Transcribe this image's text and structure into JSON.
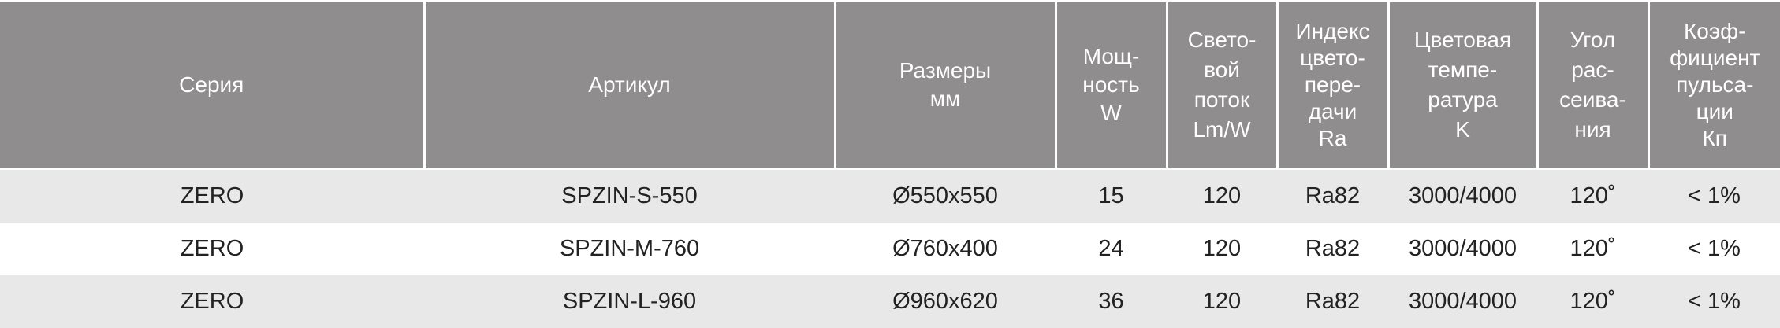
{
  "colors": {
    "header_bg": "#8f8d8e",
    "row_alt_bg": "#e8e8e8"
  },
  "headers": [
    [
      "Серия"
    ],
    [
      "Артикул"
    ],
    [
      "Размеры",
      "мм"
    ],
    [
      "Мощ-",
      "ность",
      "W"
    ],
    [
      "Свето-",
      "вой",
      "поток",
      "Lm/W"
    ],
    [
      "Индекс",
      "цвето-",
      "пере-",
      "дачи",
      "Ra"
    ],
    [
      "Цветовая",
      "темпе-",
      "ратура",
      "K"
    ],
    [
      "Угол",
      "рас-",
      "сеива-",
      "ния"
    ],
    [
      "Коэф-",
      "фициент",
      "пульса-",
      "ции",
      "Кп"
    ]
  ],
  "rows": [
    [
      "ZERO",
      "SPZIN-S-550",
      "Ø550x550",
      "15",
      "120",
      "Ra82",
      "3000/4000",
      "120˚",
      "< 1%"
    ],
    [
      "ZERO",
      "SPZIN-M-760",
      "Ø760x400",
      "24",
      "120",
      "Ra82",
      "3000/4000",
      "120˚",
      "< 1%"
    ],
    [
      "ZERO",
      "SPZIN-L-960",
      "Ø960x620",
      "36",
      "120",
      "Ra82",
      "3000/4000",
      "120˚",
      "< 1%"
    ]
  ]
}
